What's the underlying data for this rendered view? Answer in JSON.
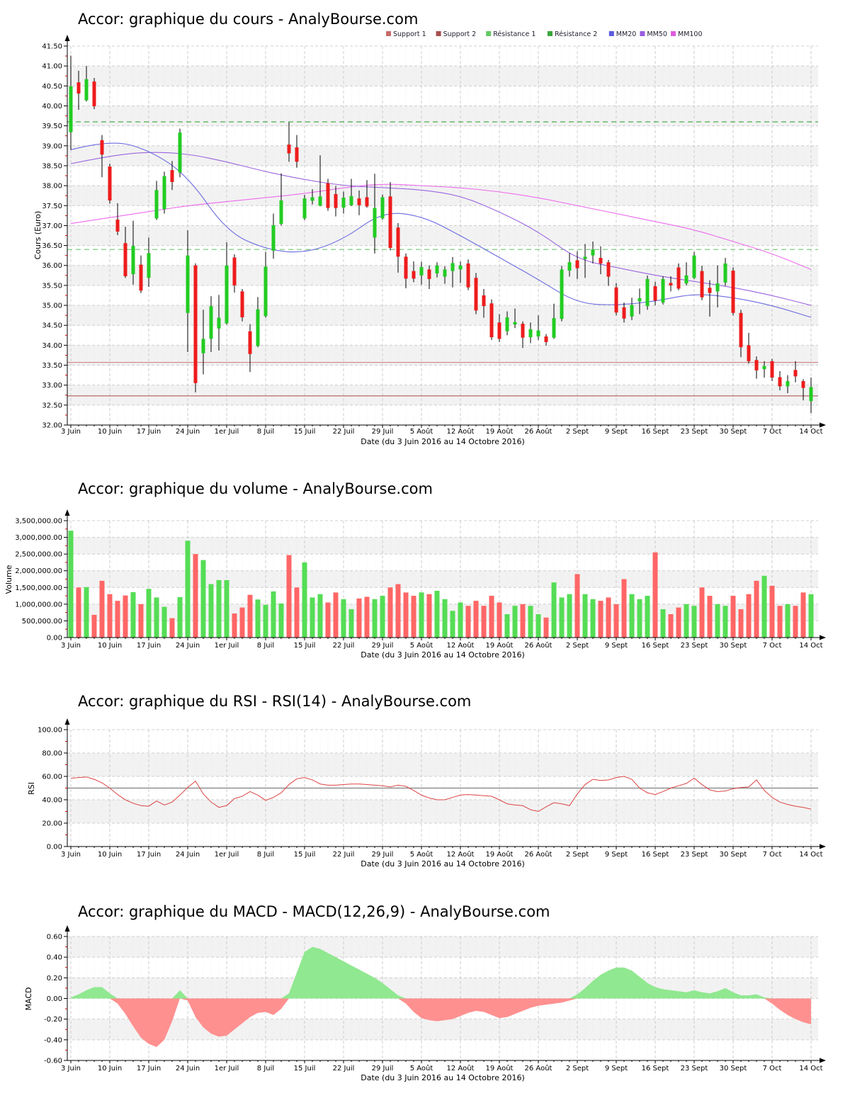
{
  "site": "AnalyBourse.com",
  "stock": "Accor",
  "x_labels": [
    "3 Juin",
    "10 Juin",
    "17 Juin",
    "24 Juin",
    "1er Juil",
    "8 Juil",
    "15 Juil",
    "22 Juil",
    "29 Juil",
    "5 Août",
    "12 Août",
    "19 Août",
    "26 Août",
    "2 Sept",
    "9 Sept",
    "16 Sept",
    "23 Sept",
    "30 Sept",
    "7 Oct",
    "14 Oct"
  ],
  "legend": {
    "items": [
      {
        "label": "Support 1",
        "color": "#c86a6a"
      },
      {
        "label": "Support 2",
        "color": "#a84f4f"
      },
      {
        "label": "Résistance 1",
        "color": "#63c863"
      },
      {
        "label": "Résistance 2",
        "color": "#3aa63a"
      },
      {
        "label": "MM20",
        "color": "#5c5ce0"
      },
      {
        "label": "MM50",
        "color": "#9a5ce0"
      },
      {
        "label": "MM100",
        "color": "#e05ce0"
      }
    ]
  },
  "colors": {
    "candle_up": "#22cc22",
    "candle_down": "#ee1c1c",
    "vol_up": "#55dd55",
    "vol_down": "#ff6666",
    "mm20": "#6a6ae0",
    "mm50": "#9a64e0",
    "mm100": "#ee6aee",
    "support1": "#cc7777",
    "support2": "#a84848",
    "res1": "#6cc86c",
    "res2": "#4aae4a",
    "rsi": "#dd4444",
    "rsi_mid": "#808080",
    "macd_pos": "#90e890",
    "macd_neg": "#ff9090",
    "band": "#f2f2f2",
    "grid": "#c8c8c8",
    "minor_tick": "#cc0000"
  },
  "chart_data": [
    {
      "type": "candlestick",
      "title": "Accor: graphique du cours - AnalyBourse.com",
      "ylabel": "Cours (Euro)",
      "xlabel": "Date (du 3 Juin 2016 au 14 Octobre 2016)",
      "ylim": [
        32,
        41.5
      ],
      "y_ticks": [
        "32.00",
        "32.50",
        "33.00",
        "33.50",
        "34.00",
        "34.50",
        "35.00",
        "35.50",
        "36.00",
        "36.50",
        "37.00",
        "37.50",
        "38.00",
        "38.50",
        "39.00",
        "39.50",
        "40.00",
        "40.50",
        "41.00",
        "41.50"
      ],
      "levels": {
        "support1": 33.57,
        "support2": 32.73,
        "resistance1": 36.4,
        "resistance2": 39.6
      },
      "candles_ohlc": [
        [
          39.34,
          41.26,
          38.9,
          40.49
        ],
        [
          40.59,
          40.88,
          39.9,
          40.31
        ],
        [
          40.14,
          41.0,
          40.11,
          40.67
        ],
        [
          40.61,
          40.7,
          39.92,
          39.99
        ],
        [
          39.14,
          39.27,
          38.21,
          38.78
        ],
        [
          38.48,
          38.55,
          37.55,
          37.63
        ],
        [
          37.15,
          37.56,
          36.76,
          36.85
        ],
        [
          36.56,
          36.97,
          35.69,
          35.73
        ],
        [
          35.78,
          37.12,
          35.52,
          36.49
        ],
        [
          36.02,
          36.25,
          35.31,
          35.37
        ],
        [
          35.69,
          36.7,
          35.46,
          36.31
        ],
        [
          37.18,
          38.12,
          37.14,
          37.89
        ],
        [
          37.41,
          38.35,
          37.3,
          38.24
        ],
        [
          38.39,
          38.62,
          37.89,
          38.09
        ],
        [
          38.33,
          39.43,
          38.21,
          39.33
        ],
        [
          34.81,
          36.88,
          33.83,
          36.25
        ],
        [
          36.0,
          36.05,
          32.82,
          33.05
        ],
        [
          33.8,
          34.89,
          33.27,
          34.16
        ],
        [
          34.16,
          35.23,
          33.83,
          34.98
        ],
        [
          34.42,
          35.26,
          33.87,
          34.69
        ],
        [
          34.55,
          36.58,
          34.52,
          36.0
        ],
        [
          36.2,
          36.28,
          35.32,
          35.5
        ],
        [
          35.35,
          35.41,
          34.6,
          34.7
        ],
        [
          34.35,
          34.53,
          33.33,
          33.78
        ],
        [
          33.98,
          35.21,
          33.95,
          34.9
        ],
        [
          34.73,
          36.34,
          34.69,
          35.97
        ],
        [
          36.37,
          37.3,
          36.17,
          37.01
        ],
        [
          37.04,
          38.31,
          37.0,
          37.63
        ],
        [
          39.03,
          39.59,
          38.6,
          38.81
        ],
        [
          38.96,
          39.27,
          38.45,
          38.6
        ],
        [
          37.18,
          37.77,
          37.14,
          37.68
        ],
        [
          37.62,
          37.91,
          37.53,
          37.71
        ],
        [
          37.5,
          38.76,
          37.48,
          37.73
        ],
        [
          38.06,
          38.17,
          37.37,
          37.44
        ],
        [
          37.79,
          37.99,
          37.23,
          37.44
        ],
        [
          37.45,
          37.85,
          37.3,
          37.7
        ],
        [
          37.51,
          38.17,
          37.49,
          37.74
        ],
        [
          37.68,
          37.88,
          37.26,
          37.51
        ],
        [
          37.71,
          38.14,
          37.45,
          37.48
        ],
        [
          36.7,
          38.3,
          36.3,
          37.44
        ],
        [
          37.18,
          37.78,
          37.15,
          37.71
        ],
        [
          37.73,
          38.09,
          36.38,
          36.44
        ],
        [
          36.95,
          37.06,
          35.82,
          36.22
        ],
        [
          36.22,
          36.3,
          35.43,
          35.67
        ],
        [
          35.86,
          36.1,
          35.58,
          35.67
        ],
        [
          35.75,
          36.09,
          35.52,
          35.96
        ],
        [
          35.9,
          36.0,
          35.41,
          35.66
        ],
        [
          35.8,
          36.08,
          35.7,
          36.0
        ],
        [
          35.72,
          35.98,
          35.54,
          35.9
        ],
        [
          35.86,
          36.21,
          35.45,
          36.06
        ],
        [
          35.9,
          36.1,
          35.56,
          36.0
        ],
        [
          36.05,
          36.15,
          35.38,
          35.45
        ],
        [
          35.69,
          35.81,
          34.78,
          34.87
        ],
        [
          35.25,
          35.41,
          34.69,
          34.98
        ],
        [
          35.05,
          35.15,
          34.13,
          34.2
        ],
        [
          34.57,
          34.78,
          34.08,
          34.16
        ],
        [
          34.35,
          34.85,
          34.25,
          34.7
        ],
        [
          34.52,
          34.92,
          34.43,
          34.58
        ],
        [
          34.54,
          34.6,
          33.93,
          34.19
        ],
        [
          34.2,
          34.57,
          34.05,
          34.4
        ],
        [
          34.22,
          34.75,
          34.13,
          34.37
        ],
        [
          34.22,
          34.28,
          33.99,
          34.08
        ],
        [
          34.19,
          35.04,
          34.16,
          34.68
        ],
        [
          34.66,
          35.99,
          34.6,
          35.9
        ],
        [
          35.87,
          36.31,
          35.72,
          36.08
        ],
        [
          36.13,
          36.36,
          35.66,
          35.93
        ],
        [
          36.16,
          36.54,
          35.69,
          36.22
        ],
        [
          36.25,
          36.6,
          36.05,
          36.4
        ],
        [
          36.19,
          36.48,
          35.78,
          36.05
        ],
        [
          36.08,
          36.14,
          35.49,
          35.72
        ],
        [
          35.45,
          35.56,
          34.75,
          34.82
        ],
        [
          34.95,
          35.07,
          34.57,
          34.67
        ],
        [
          34.72,
          35.19,
          34.63,
          35.01
        ],
        [
          35.1,
          35.42,
          34.78,
          35.18
        ],
        [
          34.98,
          35.75,
          34.89,
          35.66
        ],
        [
          35.48,
          35.59,
          35.0,
          35.12
        ],
        [
          35.07,
          35.73,
          35.02,
          35.66
        ],
        [
          35.56,
          35.73,
          35.35,
          35.5
        ],
        [
          35.95,
          36.05,
          35.38,
          35.42
        ],
        [
          35.55,
          36.08,
          35.5,
          35.75
        ],
        [
          35.69,
          36.34,
          35.66,
          36.25
        ],
        [
          35.86,
          35.99,
          35.13,
          35.2
        ],
        [
          35.44,
          35.63,
          34.72,
          35.31
        ],
        [
          35.35,
          36.0,
          34.95,
          35.55
        ],
        [
          35.57,
          36.19,
          35.49,
          36.05
        ],
        [
          35.87,
          35.95,
          34.75,
          34.81
        ],
        [
          34.81,
          34.89,
          33.7,
          33.95
        ],
        [
          34.0,
          34.31,
          33.54,
          33.6
        ],
        [
          33.63,
          33.72,
          33.16,
          33.37
        ],
        [
          33.4,
          33.6,
          33.19,
          33.48
        ],
        [
          33.6,
          33.66,
          33.1,
          33.19
        ],
        [
          33.2,
          33.35,
          32.87,
          32.97
        ],
        [
          32.97,
          33.25,
          32.8,
          33.1
        ],
        [
          33.38,
          33.6,
          33.07,
          33.22
        ],
        [
          33.1,
          33.15,
          32.62,
          32.93
        ],
        [
          32.6,
          33.19,
          32.3,
          32.95
        ]
      ],
      "mm20": [
        38.9,
        39.15,
        38.9,
        38.25,
        36.85,
        36.4,
        36.3,
        36.65,
        37.35,
        37.25,
        36.75,
        36.2,
        35.65,
        35.05,
        35.0,
        35.1,
        35.3,
        35.2,
        35.0,
        34.7
      ],
      "mm50": [
        38.55,
        38.75,
        38.85,
        38.8,
        38.6,
        38.35,
        38.15,
        38.0,
        37.95,
        37.9,
        37.75,
        37.35,
        36.85,
        36.15,
        35.95,
        35.75,
        35.6,
        35.45,
        35.25,
        35.0
      ],
      "mm100": [
        37.05,
        37.2,
        37.35,
        37.5,
        37.6,
        37.7,
        37.8,
        37.95,
        38.05,
        38.0,
        37.95,
        37.85,
        37.7,
        37.5,
        37.3,
        37.1,
        36.9,
        36.6,
        36.3,
        35.9
      ]
    },
    {
      "type": "bar",
      "title": "Accor: graphique du volume - AnalyBourse.com",
      "ylabel": "Volume",
      "xlabel": "Date (du 3 Juin 2016 au 14 Octobre 2016)",
      "ylim": [
        0,
        3500000
      ],
      "y_ticks": [
        "0.00",
        "500,000.00",
        "1,000,000.00",
        "1,500,000.00",
        "2,000,000.00",
        "2,500,000.00",
        "3,000,000.00",
        "3,500,000.00"
      ],
      "values": [
        3200000,
        1500000,
        1510000,
        680000,
        1700000,
        1300000,
        1100000,
        1260000,
        1360000,
        1000000,
        1460000,
        1200000,
        920000,
        580000,
        1210000,
        2900000,
        2500000,
        2320000,
        1600000,
        1720000,
        1720000,
        720000,
        900000,
        1280000,
        1140000,
        980000,
        1380000,
        1020000,
        2470000,
        1500000,
        2250000,
        1200000,
        1300000,
        1050000,
        1350000,
        1150000,
        850000,
        1170000,
        1220000,
        1150000,
        1250000,
        1500000,
        1600000,
        1350000,
        1250000,
        1350000,
        1300000,
        1400000,
        1150000,
        800000,
        1050000,
        950000,
        1100000,
        950000,
        1250000,
        1050000,
        700000,
        950000,
        1000000,
        950000,
        700000,
        600000,
        1650000,
        1200000,
        1300000,
        1900000,
        1300000,
        1150000,
        1100000,
        1200000,
        1000000,
        1750000,
        1300000,
        1150000,
        1250000,
        2550000,
        850000,
        700000,
        900000,
        1000000,
        950000,
        1500000,
        1250000,
        1000000,
        950000,
        1250000,
        850000,
        1300000,
        1700000,
        1850000,
        1550000,
        950000,
        1000000,
        950000,
        1350000,
        1300000
      ]
    },
    {
      "type": "line",
      "title": "Accor: graphique du RSI - RSI(14) - AnalyBourse.com",
      "ylabel": "RSI",
      "xlabel": "Date (du 3 Juin 2016 au 14 Octobre 2016)",
      "ylim": [
        0,
        100
      ],
      "midline": 50,
      "y_ticks": [
        "0.00",
        "20.00",
        "40.00",
        "60.00",
        "80.00",
        "100.00"
      ],
      "values": [
        58.5,
        59,
        59.5,
        57.5,
        54.5,
        50,
        44.5,
        40,
        37,
        35,
        34.5,
        39,
        35.5,
        38,
        44,
        50.5,
        56,
        45,
        38,
        33.5,
        35,
        41,
        43,
        47,
        44,
        39.5,
        42,
        46,
        53,
        58,
        59,
        57,
        53.5,
        52.5,
        52.5,
        53,
        53.5,
        53.5,
        53,
        52.5,
        52,
        51,
        52.5,
        51.5,
        48,
        44,
        41.5,
        40,
        40,
        42,
        44,
        44.5,
        44,
        43.5,
        43,
        40,
        36.5,
        35.5,
        35,
        31.5,
        30,
        34,
        37.5,
        36.5,
        35,
        45,
        53,
        57.5,
        56.5,
        57,
        59,
        60,
        57.5,
        50,
        46,
        44.5,
        47,
        50,
        52,
        54,
        58.5,
        53,
        48.5,
        47,
        47.5,
        49.5,
        50.5,
        51,
        57,
        48,
        42,
        38,
        36,
        34.5,
        33.5,
        32
      ]
    },
    {
      "type": "area",
      "title": "Accor: graphique du MACD - MACD(12,26,9) - AnalyBourse.com",
      "ylabel": "MACD",
      "xlabel": "Date (du 3 Juin 2016 au 14 Octobre 2016)",
      "ylim": [
        -0.6,
        0.6
      ],
      "y_ticks": [
        "-0.60",
        "-0.40",
        "-0.20",
        "0.00",
        "0.20",
        "0.40",
        "0.60"
      ],
      "values": [
        0.01,
        0.04,
        0.08,
        0.11,
        0.11,
        0.05,
        -0.05,
        -0.15,
        -0.27,
        -0.38,
        -0.44,
        -0.47,
        -0.4,
        -0.22,
        0.08,
        -0.02,
        -0.18,
        -0.28,
        -0.34,
        -0.37,
        -0.36,
        -0.3,
        -0.24,
        -0.18,
        -0.14,
        -0.13,
        -0.16,
        -0.1,
        0.05,
        0.25,
        0.45,
        0.5,
        0.48,
        0.44,
        0.4,
        0.36,
        0.32,
        0.28,
        0.24,
        0.2,
        0.15,
        0.09,
        0.03,
        -0.05,
        -0.13,
        -0.19,
        -0.21,
        -0.22,
        -0.21,
        -0.2,
        -0.17,
        -0.14,
        -0.12,
        -0.13,
        -0.16,
        -0.19,
        -0.18,
        -0.15,
        -0.12,
        -0.09,
        -0.07,
        -0.06,
        -0.05,
        -0.04,
        -0.02,
        0.04,
        0.1,
        0.17,
        0.23,
        0.27,
        0.3,
        0.3,
        0.27,
        0.21,
        0.15,
        0.11,
        0.09,
        0.08,
        0.07,
        0.06,
        0.08,
        0.06,
        0.05,
        0.07,
        0.1,
        0.06,
        0.03,
        0.03,
        0.04,
        0.01,
        -0.05,
        -0.11,
        -0.16,
        -0.2,
        -0.23,
        -0.25
      ]
    }
  ]
}
